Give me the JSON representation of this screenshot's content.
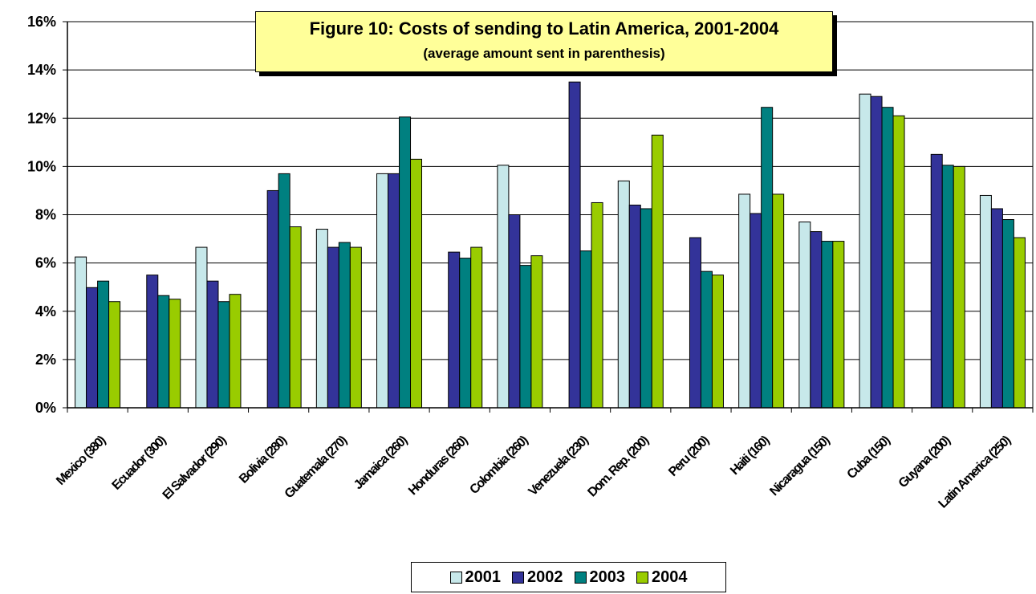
{
  "chart_data": {
    "type": "bar",
    "title": "Figure 10: Costs of sending to Latin America, 2001-2004",
    "subtitle": "(average amount sent in parenthesis)",
    "categories": [
      "Mexico (380)",
      "Ecuador (300)",
      "El Salvador (290)",
      "Bolivia (280)",
      "Guatemala (270)",
      "Jamaica (260)",
      "Honduras (260)",
      "Colombia (260)",
      "Venezuela (230)",
      "Dom. Rep. (200)",
      "Peru (200)",
      "Haiti (160)",
      "Nicaragua (150)",
      "Cuba (150)",
      "Guyana (200)",
      "Latin America (250)"
    ],
    "series": [
      {
        "name": "2001",
        "color": "#c7e8ea",
        "values": [
          6.25,
          null,
          6.65,
          null,
          7.4,
          9.7,
          null,
          10.05,
          null,
          9.4,
          null,
          8.85,
          7.7,
          13.0,
          null,
          8.8
        ]
      },
      {
        "name": "2002",
        "color": "#333399",
        "values": [
          4.98,
          5.5,
          5.25,
          9.0,
          6.65,
          9.7,
          6.45,
          8.0,
          13.5,
          8.4,
          7.05,
          8.05,
          7.3,
          12.9,
          10.5,
          8.25
        ]
      },
      {
        "name": "2003",
        "color": "#008080",
        "values": [
          5.25,
          4.65,
          4.4,
          9.7,
          6.85,
          12.05,
          6.2,
          5.9,
          6.5,
          8.25,
          5.65,
          12.45,
          6.9,
          12.45,
          10.05,
          7.8
        ]
      },
      {
        "name": "2004",
        "color": "#99cc00",
        "values": [
          4.4,
          4.5,
          4.7,
          7.5,
          6.65,
          10.3,
          6.65,
          6.3,
          8.5,
          11.3,
          5.5,
          8.85,
          6.9,
          12.1,
          10.0,
          7.05
        ]
      }
    ],
    "y_tick_labels": [
      "0%",
      "2%",
      "4%",
      "6%",
      "8%",
      "10%",
      "12%",
      "14%",
      "16%"
    ],
    "ylim": [
      0,
      16
    ],
    "y_unit": "%",
    "grid": true,
    "legend_position": "bottom"
  }
}
